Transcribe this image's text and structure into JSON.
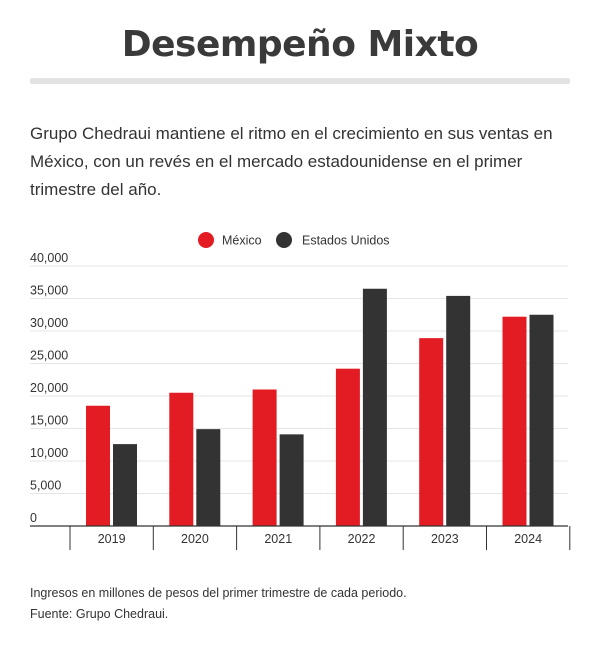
{
  "title": "Desempeño Mixto",
  "subtitle": "Grupo Chedraui mantiene el ritmo en el crecimiento en sus ventas en México, con un revés en el mercado estadounidense en el primer trimestre del año.",
  "notes": {
    "note": "Ingresos en millones de pesos del primer trimestre de cada periodo.",
    "source": "Fuente: Grupo Chedraui."
  },
  "chart_data": {
    "type": "bar",
    "categories": [
      "2019",
      "2020",
      "2021",
      "2022",
      "2023",
      "2024"
    ],
    "series": [
      {
        "name": "México",
        "color": "#e31b23",
        "values": [
          18500,
          20500,
          21000,
          24200,
          28900,
          32200
        ]
      },
      {
        "name": "Estados Unidos",
        "color": "#333333",
        "values": [
          12600,
          14900,
          14100,
          36500,
          35400,
          32500
        ]
      }
    ],
    "yticks": [
      "0",
      "5,000",
      "10,000",
      "15,000",
      "20,000",
      "25,000",
      "30,000",
      "35,000",
      "40,000"
    ],
    "ylim": [
      0,
      40000
    ],
    "grid": true,
    "legend_position": "top-center"
  }
}
